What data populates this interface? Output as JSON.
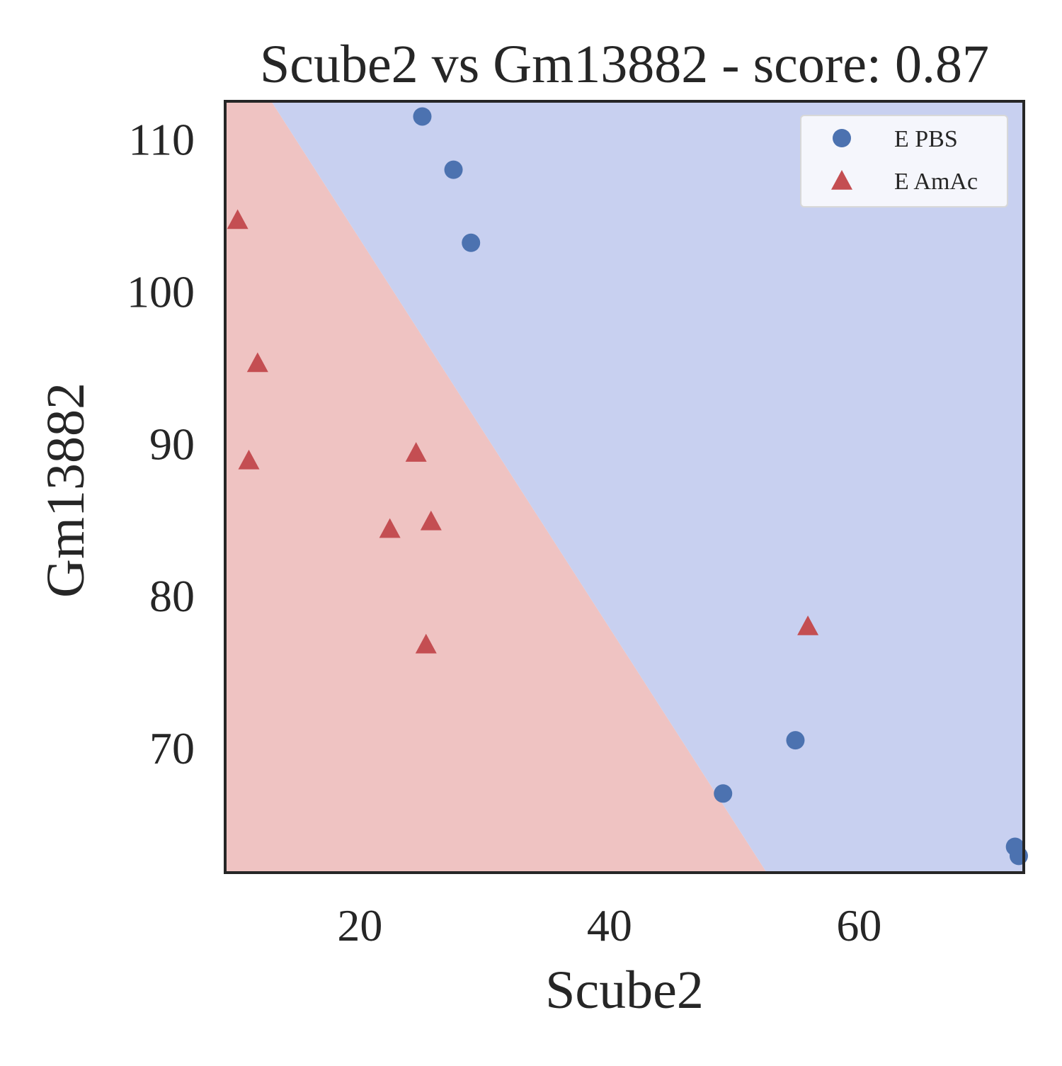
{
  "chart_data": {
    "type": "scatter",
    "title": "Scube2 vs Gm13882 - score: 0.87",
    "xlabel": "Scube2",
    "ylabel": "Gm13882",
    "xlim": [
      9.2,
      73.2
    ],
    "ylim": [
      61.8,
      112.5
    ],
    "xticks": [
      20,
      40,
      60
    ],
    "yticks": [
      70,
      80,
      90,
      100,
      110
    ],
    "grid": false,
    "legend_position": "top-right",
    "decision_boundary": {
      "points": [
        [
          12.9,
          112.5
        ],
        [
          52.6,
          61.8
        ]
      ],
      "region_colors": {
        "E PBS": "#c8d0f0",
        "E AmAc": "#efc3c2"
      }
    },
    "series": [
      {
        "name": "E PBS",
        "marker": "circle",
        "color": "#4c72b0",
        "points": [
          [
            25.0,
            111.5
          ],
          [
            27.5,
            108.0
          ],
          [
            28.9,
            103.2
          ],
          [
            54.9,
            70.5
          ],
          [
            49.1,
            67.0
          ],
          [
            72.5,
            63.5
          ],
          [
            72.8,
            62.9
          ]
        ]
      },
      {
        "name": "E AmAc",
        "marker": "triangle",
        "color": "#c44e52",
        "points": [
          [
            10.2,
            104.7
          ],
          [
            11.8,
            95.3
          ],
          [
            11.1,
            88.9
          ],
          [
            24.5,
            89.4
          ],
          [
            22.4,
            84.4
          ],
          [
            25.7,
            84.9
          ],
          [
            25.3,
            76.8
          ],
          [
            55.9,
            78.0
          ]
        ]
      }
    ]
  }
}
